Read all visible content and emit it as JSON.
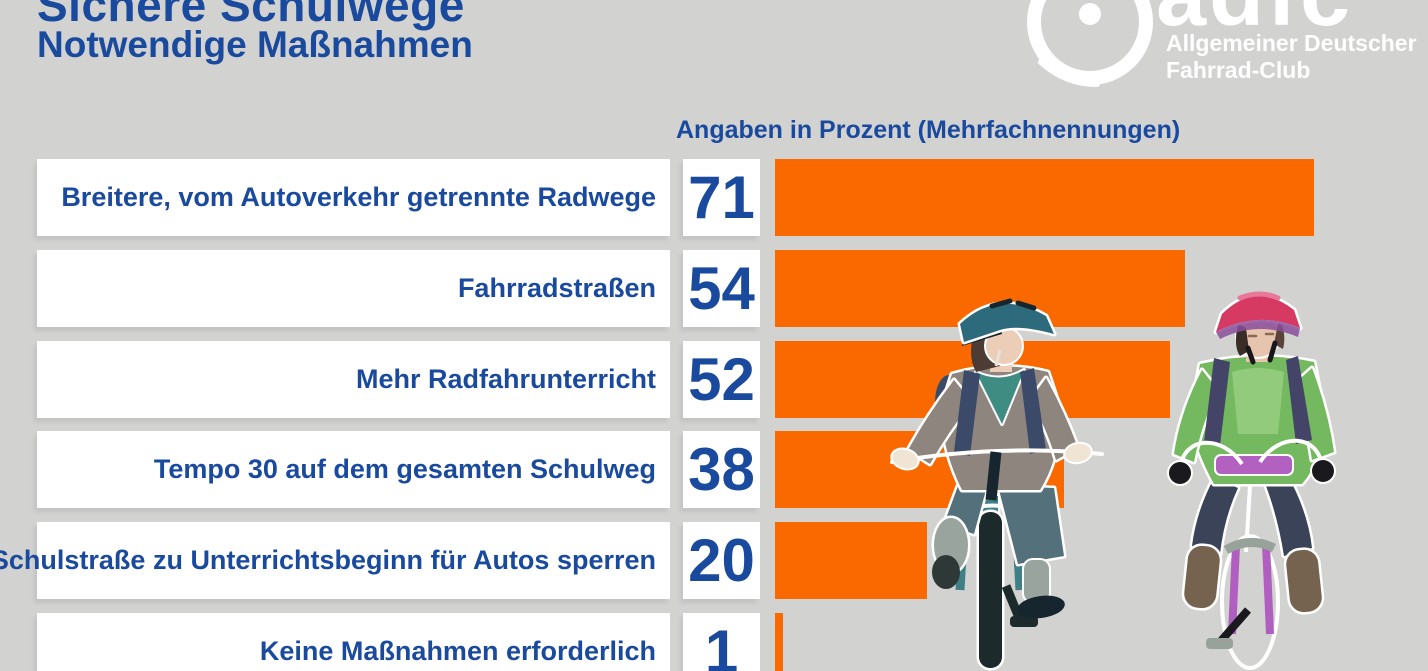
{
  "page": {
    "background": "#D2D2D1"
  },
  "header": {
    "title": "Sichere Schulwege",
    "subtitle": "Notwendige Maßnahmen",
    "text_color": "#1A4A9E"
  },
  "logo": {
    "brand": "adfc",
    "line1": "Allgemeiner Deutscher",
    "line2": "Fahrrad-Club",
    "color": "#FFFFFF",
    "icon": "bicycle-wheel-icon"
  },
  "chart_data": {
    "type": "bar",
    "orientation": "horizontal",
    "title": "Angaben in Prozent (Mehrfachnennungen)",
    "value_unit": "percent",
    "multiple_answers": true,
    "categories": [
      "Breitere, vom Autoverkehr getrennte Radwege",
      "Fahrradstraßen",
      "Mehr Radfahrunterricht",
      "Tempo 30 auf dem gesamten Schulweg",
      "Schulstraße zu Unterrichtsbeginn für Autos sperren",
      "Keine Maßnahmen erforderlich"
    ],
    "values": [
      71,
      54,
      52,
      38,
      20,
      1
    ],
    "xlim": [
      0,
      86
    ],
    "grid": false,
    "legend": false,
    "bar_color": "#F96900",
    "value_color": "#1A4A9E",
    "label_color": "#1A4A9E",
    "box_color": "#FFFFFF",
    "background": "#D2D2D1"
  },
  "illustration": {
    "description": "Two children wearing bicycle helmets riding bicycles",
    "position": "right-center"
  }
}
